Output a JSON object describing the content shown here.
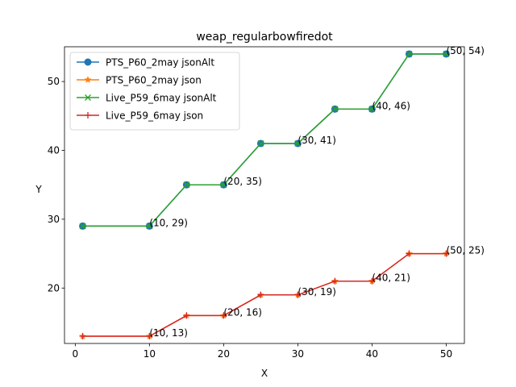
{
  "chart_data": {
    "type": "line",
    "title": "weap_regularbowfiredot",
    "xlabel": "X",
    "ylabel": "Y",
    "xlim": [
      -1.45,
      52.45
    ],
    "ylim": [
      11.95,
      55.05
    ],
    "xticks": [
      0,
      10,
      20,
      30,
      40,
      50
    ],
    "yticks": [
      20,
      30,
      40,
      50
    ],
    "legend_position": "upper-left",
    "x": [
      1,
      10,
      15,
      20,
      25,
      30,
      35,
      40,
      45,
      50
    ],
    "series": [
      {
        "name": "PTS_P60_2may jsonAlt",
        "color": "#1f77b4",
        "marker": "circle",
        "values": [
          29,
          29,
          35,
          35,
          41,
          41,
          46,
          46,
          54,
          54
        ]
      },
      {
        "name": "PTS_P60_2may json",
        "color": "#ff7f0e",
        "marker": "star",
        "values": [
          13,
          13,
          16,
          16,
          19,
          19,
          21,
          21,
          25,
          25
        ]
      },
      {
        "name": "Live_P59_6may jsonAlt",
        "color": "#2ca02c",
        "marker": "x",
        "values": [
          29,
          29,
          35,
          35,
          41,
          41,
          46,
          46,
          54,
          54
        ]
      },
      {
        "name": "Live_P59_6may json",
        "color": "#d62728",
        "marker": "plus",
        "values": [
          13,
          13,
          16,
          16,
          19,
          19,
          21,
          21,
          25,
          25
        ]
      }
    ],
    "annotations": [
      {
        "x": 10,
        "y": 29,
        "text": "(10, 29)"
      },
      {
        "x": 20,
        "y": 35,
        "text": "(20, 35)"
      },
      {
        "x": 30,
        "y": 41,
        "text": "(30, 41)"
      },
      {
        "x": 40,
        "y": 46,
        "text": "(40, 46)"
      },
      {
        "x": 50,
        "y": 54,
        "text": "(50, 54)"
      },
      {
        "x": 10,
        "y": 13,
        "text": "(10, 13)"
      },
      {
        "x": 20,
        "y": 16,
        "text": "(20, 16)"
      },
      {
        "x": 30,
        "y": 19,
        "text": "(30, 19)"
      },
      {
        "x": 40,
        "y": 21,
        "text": "(40, 21)"
      },
      {
        "x": 50,
        "y": 25,
        "text": "(50, 25)"
      }
    ]
  }
}
